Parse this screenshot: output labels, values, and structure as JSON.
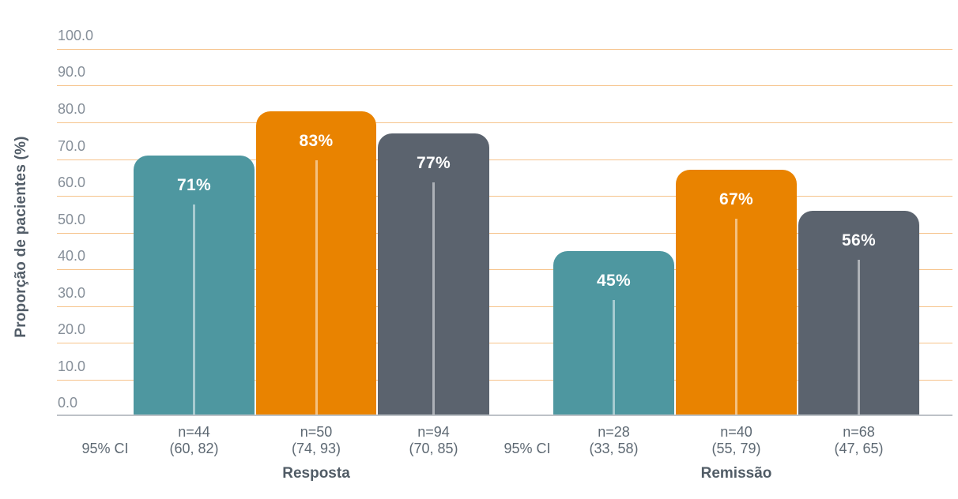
{
  "chart_data": {
    "type": "bar",
    "title": "",
    "ylabel": "Proporção de pacientes (%)",
    "ylim": [
      0,
      100
    ],
    "ytick_step": 10,
    "yticks": [
      "0.0",
      "10.0",
      "20.0",
      "30.0",
      "40.0",
      "50.0",
      "60.0",
      "70.0",
      "80.0",
      "90.0",
      "100.0"
    ],
    "grid": "horizontal",
    "legend": "none",
    "colors": {
      "teal": "#4e97a0",
      "orange": "#e98300",
      "gray": "#5b636e",
      "gridline": "#f6c38b",
      "axis_line": "#bdc2c7",
      "tick_text": "#868f99",
      "label_text": "#5e6973",
      "value_text": "#ffffff"
    },
    "groups": [
      {
        "label": "Resposta",
        "ci_prefix": "95% CI",
        "bars": [
          {
            "series": "teal",
            "value": 71,
            "value_label": "71%",
            "n_label": "n=44",
            "ci_label": "(60, 82)"
          },
          {
            "series": "orange",
            "value": 83,
            "value_label": "83%",
            "n_label": "n=50",
            "ci_label": "(74, 93)"
          },
          {
            "series": "gray",
            "value": 77,
            "value_label": "77%",
            "n_label": "n=94",
            "ci_label": "(70, 85)"
          }
        ]
      },
      {
        "label": "Remissão",
        "ci_prefix": "95% CI",
        "bars": [
          {
            "series": "teal",
            "value": 45,
            "value_label": "45%",
            "n_label": "n=28",
            "ci_label": "(33, 58)"
          },
          {
            "series": "orange",
            "value": 67,
            "value_label": "67%",
            "n_label": "n=40",
            "ci_label": "(55, 79)"
          },
          {
            "series": "gray",
            "value": 56,
            "value_label": "56%",
            "n_label": "n=68",
            "ci_label": "(47, 65)"
          }
        ]
      }
    ]
  }
}
